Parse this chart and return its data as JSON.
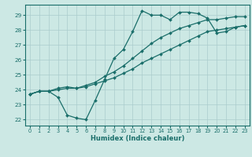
{
  "xlabel": "Humidex (Indice chaleur)",
  "ylabel": "",
  "bg_color": "#cce8e4",
  "grid_color": "#aacccc",
  "line_color": "#1a6e6a",
  "xlim": [
    -0.5,
    23.5
  ],
  "ylim": [
    21.6,
    29.7
  ],
  "yticks": [
    22,
    23,
    24,
    25,
    26,
    27,
    28,
    29
  ],
  "xticks": [
    0,
    1,
    2,
    3,
    4,
    5,
    6,
    7,
    8,
    9,
    10,
    11,
    12,
    13,
    14,
    15,
    16,
    17,
    18,
    19,
    20,
    21,
    22,
    23
  ],
  "series": [
    [
      23.7,
      23.9,
      23.9,
      23.5,
      22.3,
      22.1,
      22.0,
      23.3,
      24.7,
      26.1,
      26.7,
      27.9,
      29.3,
      29.0,
      29.0,
      28.7,
      29.2,
      29.2,
      29.1,
      28.8,
      27.8,
      27.9,
      28.2,
      28.3
    ],
    [
      23.7,
      23.9,
      23.9,
      24.1,
      24.2,
      24.1,
      24.3,
      24.5,
      24.9,
      25.2,
      25.6,
      26.1,
      26.6,
      27.1,
      27.5,
      27.8,
      28.1,
      28.3,
      28.5,
      28.7,
      28.7,
      28.8,
      28.9,
      28.9
    ],
    [
      23.7,
      23.9,
      23.9,
      24.0,
      24.1,
      24.1,
      24.2,
      24.4,
      24.6,
      24.8,
      25.1,
      25.4,
      25.8,
      26.1,
      26.4,
      26.7,
      27.0,
      27.3,
      27.6,
      27.9,
      28.0,
      28.1,
      28.2,
      28.3
    ]
  ]
}
